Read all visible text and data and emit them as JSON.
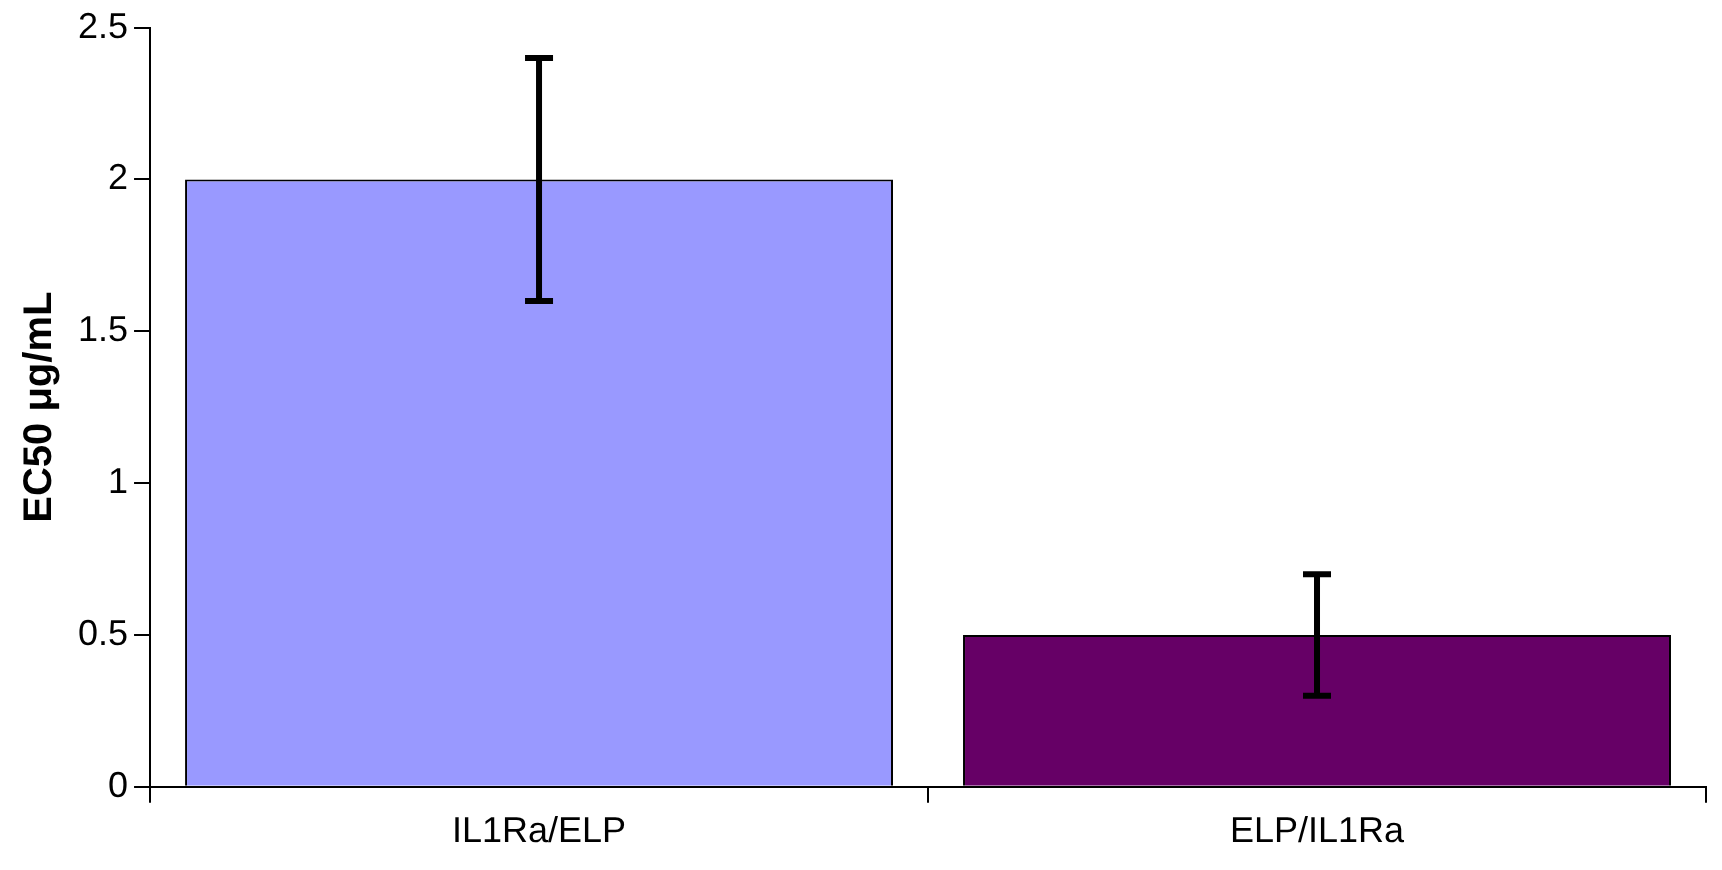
{
  "chart_data": {
    "type": "bar",
    "ylabel": "EC50 μg/mL",
    "categories": [
      "IL1Ra/ELP",
      "ELP/IL1Ra"
    ],
    "values": [
      2.0,
      0.5
    ],
    "colors": [
      "#9999ff",
      "#660066"
    ],
    "errors": [
      0.4,
      0.2
    ],
    "ylim": [
      0,
      2.5
    ],
    "yticks": [
      0,
      0.5,
      1,
      1.5,
      2,
      2.5
    ],
    "grid": false,
    "legend": false
  }
}
